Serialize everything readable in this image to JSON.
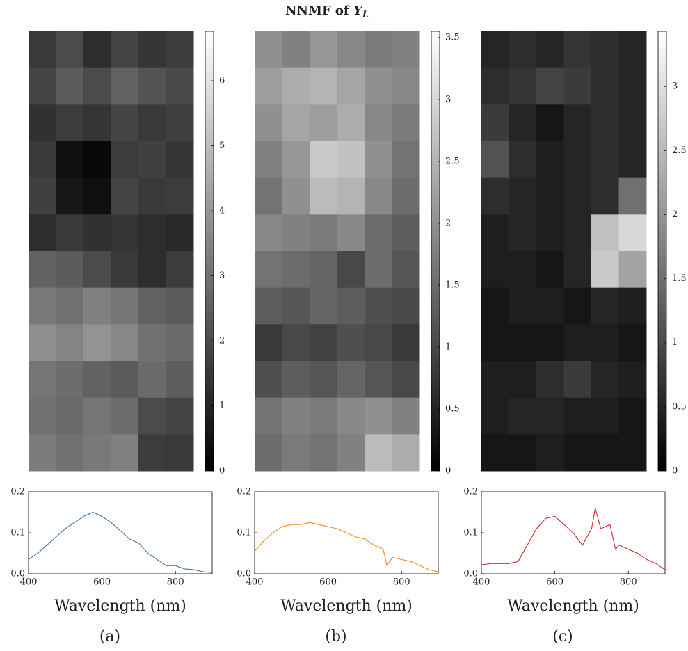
{
  "title": "NNMF of",
  "title_symbol": "Y",
  "title_subscript": "L",
  "chart_data": [
    {
      "type": "heatmap",
      "zlim": [
        0,
        6.76
      ],
      "colorbar_ticks": [
        0,
        1,
        2,
        3,
        4,
        5,
        6
      ],
      "z": [
        [
          1.5,
          2.0,
          1.2,
          1.8,
          1.4,
          1.6
        ],
        [
          1.8,
          2.4,
          2.0,
          2.6,
          2.2,
          1.9
        ],
        [
          1.3,
          1.6,
          1.4,
          1.8,
          1.5,
          1.7
        ],
        [
          1.5,
          0.4,
          0.2,
          1.6,
          1.7,
          1.4
        ],
        [
          1.7,
          0.6,
          0.4,
          1.8,
          1.5,
          1.6
        ],
        [
          1.2,
          1.5,
          1.3,
          1.4,
          1.2,
          1.1
        ],
        [
          2.6,
          2.4,
          2.0,
          1.5,
          1.2,
          1.6
        ],
        [
          3.2,
          3.0,
          3.4,
          3.1,
          2.6,
          2.4
        ],
        [
          3.8,
          3.5,
          3.9,
          3.6,
          3.0,
          2.8
        ],
        [
          3.1,
          2.9,
          2.6,
          2.4,
          2.8,
          2.5
        ],
        [
          3.0,
          2.8,
          3.1,
          2.9,
          2.0,
          1.8
        ],
        [
          3.3,
          3.0,
          3.2,
          3.4,
          1.6,
          1.5
        ]
      ]
    },
    {
      "type": "heatmap",
      "zlim": [
        0,
        3.55
      ],
      "colorbar_ticks": [
        0,
        0.5,
        1,
        1.5,
        2,
        2.5,
        3,
        3.5
      ],
      "z": [
        [
          2.0,
          1.8,
          2.1,
          1.9,
          1.7,
          1.8
        ],
        [
          2.2,
          2.4,
          2.5,
          2.3,
          2.0,
          1.9
        ],
        [
          2.0,
          2.3,
          2.2,
          2.4,
          1.9,
          1.7
        ],
        [
          1.8,
          2.1,
          2.8,
          2.7,
          2.0,
          1.6
        ],
        [
          1.6,
          2.0,
          2.6,
          2.5,
          1.9,
          1.5
        ],
        [
          1.9,
          1.8,
          1.7,
          1.9,
          1.5,
          1.3
        ],
        [
          1.6,
          1.5,
          1.4,
          1.0,
          1.5,
          1.2
        ],
        [
          1.3,
          1.2,
          1.4,
          1.3,
          1.1,
          1.0
        ],
        [
          0.8,
          1.0,
          0.9,
          1.1,
          1.0,
          0.8
        ],
        [
          1.1,
          1.3,
          1.2,
          1.4,
          1.2,
          1.0
        ],
        [
          1.6,
          1.8,
          1.7,
          1.9,
          2.0,
          1.8
        ],
        [
          1.5,
          1.7,
          1.6,
          1.8,
          2.6,
          2.4
        ]
      ]
    },
    {
      "type": "heatmap",
      "zlim": [
        0,
        3.43
      ],
      "colorbar_ticks": [
        0,
        0.5,
        1,
        1.5,
        2,
        2.5,
        3
      ],
      "z": [
        [
          0.5,
          0.6,
          0.5,
          0.7,
          0.6,
          0.5
        ],
        [
          0.6,
          0.7,
          0.9,
          0.8,
          0.6,
          0.5
        ],
        [
          0.8,
          0.5,
          0.3,
          0.5,
          0.6,
          0.5
        ],
        [
          1.1,
          0.6,
          0.4,
          0.5,
          0.6,
          0.5
        ],
        [
          0.6,
          0.5,
          0.4,
          0.5,
          0.6,
          1.5
        ],
        [
          0.4,
          0.5,
          0.4,
          0.5,
          2.6,
          2.9
        ],
        [
          0.4,
          0.4,
          0.3,
          0.5,
          2.7,
          2.2
        ],
        [
          0.3,
          0.4,
          0.4,
          0.3,
          0.5,
          0.4
        ],
        [
          0.3,
          0.3,
          0.3,
          0.4,
          0.4,
          0.3
        ],
        [
          0.4,
          0.4,
          0.6,
          0.8,
          0.5,
          0.4
        ],
        [
          0.4,
          0.5,
          0.5,
          0.4,
          0.4,
          0.3
        ],
        [
          0.3,
          0.3,
          0.4,
          0.3,
          0.3,
          0.3
        ]
      ]
    },
    {
      "type": "line",
      "color": "#3b6fa8",
      "xlabel": "Wavelength (nm)",
      "caption": "(a)",
      "xlim": [
        400,
        900
      ],
      "ylim": [
        0,
        0.2
      ],
      "xticks": [
        400,
        600,
        800
      ],
      "yticks": [
        {
          "value": 0,
          "label": "0.0"
        },
        0.1,
        0.2
      ],
      "x": [
        400,
        425,
        450,
        475,
        500,
        525,
        550,
        575,
        600,
        625,
        650,
        675,
        700,
        725,
        750,
        775,
        800,
        825,
        850,
        875,
        900
      ],
      "values": [
        0.035,
        0.05,
        0.07,
        0.09,
        0.11,
        0.125,
        0.14,
        0.15,
        0.14,
        0.125,
        0.105,
        0.085,
        0.075,
        0.05,
        0.035,
        0.02,
        0.02,
        0.012,
        0.01,
        0.005,
        0.003
      ]
    },
    {
      "type": "line",
      "color": "#f08a24",
      "xlabel": "Wavelength (nm)",
      "caption": "(b)",
      "xlim": [
        400,
        900
      ],
      "ylim": [
        0,
        0.2
      ],
      "xticks": [
        400,
        600,
        800
      ],
      "yticks": [
        {
          "value": 0,
          "label": "0.0"
        },
        0.1,
        0.2
      ],
      "x": [
        400,
        425,
        450,
        475,
        500,
        525,
        550,
        575,
        600,
        625,
        650,
        675,
        700,
        725,
        750,
        760,
        775,
        800,
        825,
        850,
        875,
        900
      ],
      "values": [
        0.055,
        0.08,
        0.1,
        0.115,
        0.12,
        0.12,
        0.125,
        0.12,
        0.115,
        0.11,
        0.1,
        0.09,
        0.085,
        0.07,
        0.06,
        0.02,
        0.04,
        0.035,
        0.03,
        0.02,
        0.01,
        0.005
      ]
    },
    {
      "type": "line",
      "color": "#d62728",
      "xlabel": "Wavelength (nm)",
      "caption": "(c)",
      "xlim": [
        400,
        900
      ],
      "ylim": [
        0,
        0.2
      ],
      "xticks": [
        400,
        600,
        800
      ],
      "yticks": [
        {
          "value": 0,
          "label": "0.0"
        },
        0.1,
        0.2
      ],
      "x": [
        400,
        425,
        450,
        475,
        500,
        525,
        550,
        575,
        600,
        625,
        650,
        675,
        700,
        710,
        725,
        750,
        765,
        775,
        800,
        825,
        850,
        875,
        900
      ],
      "values": [
        0.022,
        0.025,
        0.025,
        0.025,
        0.03,
        0.07,
        0.11,
        0.135,
        0.14,
        0.12,
        0.1,
        0.07,
        0.11,
        0.16,
        0.11,
        0.12,
        0.06,
        0.07,
        0.06,
        0.05,
        0.035,
        0.025,
        0.01
      ]
    }
  ]
}
